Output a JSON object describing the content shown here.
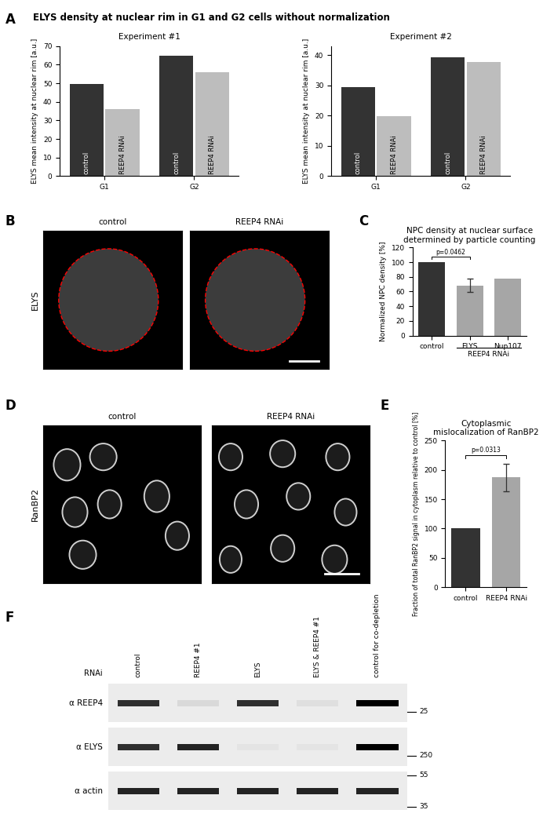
{
  "panel_letters": [
    "A",
    "B",
    "C",
    "D",
    "E",
    "F"
  ],
  "header": "ELYS density at nuclear rim in G1 and G2 cells without normalization",
  "chart_data": [
    {
      "type": "bar",
      "title": "Experiment #1",
      "y_label": "ELYS mean intensity at nuclear rim [a.u.]",
      "categories": [
        "G1",
        "G2"
      ],
      "series": [
        {
          "name": "control",
          "color": "#333333",
          "values": [
            49.5,
            65
          ]
        },
        {
          "name": "REEP4 RNAi",
          "color": "#bdbdbd",
          "values": [
            36.3,
            55.8
          ]
        }
      ],
      "ylim": [
        0,
        70
      ],
      "yticks": [
        0,
        10,
        20,
        30,
        40,
        50,
        60,
        70
      ]
    },
    {
      "type": "bar",
      "title": "Experiment #2",
      "y_label": "ELYS mean intensity at nuclear rim [a.u.]",
      "categories": [
        "G1",
        "G2"
      ],
      "series": [
        {
          "name": "control",
          "color": "#333333",
          "values": [
            29.5,
            39.3
          ]
        },
        {
          "name": "REEP4 RNAi",
          "color": "#bdbdbd",
          "values": [
            19.8,
            37.8
          ]
        }
      ],
      "ylim": [
        0,
        43
      ],
      "yticks": [
        0,
        10,
        20,
        30,
        40
      ]
    },
    {
      "type": "bar",
      "title": "NPC density at nuclear surface determined by particle counting",
      "y_label": "Normalized NPC density [%]",
      "categories": [
        "control",
        "ELYS",
        "Nup107"
      ],
      "values": [
        100,
        68.5,
        77.5
      ],
      "errors": [
        null,
        9.5,
        null
      ],
      "colors": [
        "#333333",
        "#a6a6a6",
        "#a6a6a6"
      ],
      "ylim": [
        0,
        120
      ],
      "yticks": [
        0,
        20,
        40,
        60,
        80,
        100,
        120
      ],
      "category_group": {
        "label": "REEP4 RNAi",
        "members": [
          "ELYS",
          "Nup107"
        ]
      },
      "annotations": [
        {
          "text": "p=0.0462",
          "between": [
            "control",
            "ELYS"
          ]
        }
      ]
    },
    {
      "type": "bar",
      "title": "Cytoplasmic mislocalization of RanBP2",
      "y_label": "Fraction of total RanBP2 signal in cytoplasm relative to control [%]",
      "categories": [
        "control",
        "REEP4 RNAi"
      ],
      "values": [
        100,
        187
      ],
      "errors": [
        null,
        23
      ],
      "colors": [
        "#333333",
        "#a6a6a6"
      ],
      "ylim": [
        0,
        250
      ],
      "yticks": [
        0,
        50,
        100,
        150,
        200,
        250
      ],
      "annotations": [
        {
          "text": "p=0.0313",
          "between": [
            "control",
            "REEP4 RNAi"
          ]
        }
      ]
    }
  ],
  "images": [
    {
      "row_label": "ELYS",
      "columns": [
        "control",
        "REEP4 RNAi"
      ]
    },
    {
      "row_label": "RanBP2",
      "columns": [
        "control",
        "REEP4 RNAi"
      ]
    }
  ],
  "blot": {
    "row_header": "RNAi",
    "lanes": [
      "control",
      "REEP4 #1",
      "ELYS",
      "ELYS & REEP4 #1",
      "control for co-depletion"
    ],
    "rows": [
      {
        "label": "α REEP4",
        "band_intensity": [
          0.8,
          0.08,
          0.8,
          0.05,
          1.0
        ],
        "markers": [
          25
        ]
      },
      {
        "label": "α ELYS",
        "band_intensity": [
          0.8,
          0.85,
          0.03,
          0.03,
          1.0
        ],
        "markers": [
          250
        ]
      },
      {
        "label": "α actin",
        "band_intensity": [
          0.85,
          0.85,
          0.85,
          0.85,
          0.85
        ],
        "markers": [
          55,
          35
        ]
      }
    ]
  }
}
